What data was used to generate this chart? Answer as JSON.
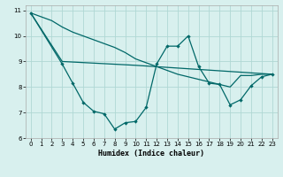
{
  "xlabel": "Humidex (Indice chaleur)",
  "bg_color": "#d8f0ee",
  "grid_color": "#b0d8d4",
  "line_color": "#006868",
  "xlim": [
    -0.5,
    23.5
  ],
  "ylim": [
    6,
    11.2
  ],
  "xticks": [
    0,
    1,
    2,
    3,
    4,
    5,
    6,
    7,
    8,
    9,
    10,
    11,
    12,
    13,
    14,
    15,
    16,
    17,
    18,
    19,
    20,
    21,
    22,
    23
  ],
  "yticks": [
    6,
    7,
    8,
    9,
    10,
    11
  ],
  "series1": [
    [
      0,
      10.9
    ],
    [
      1,
      10.75
    ],
    [
      2,
      10.6
    ],
    [
      3,
      10.35
    ],
    [
      4,
      10.15
    ],
    [
      5,
      10.0
    ],
    [
      6,
      9.85
    ],
    [
      7,
      9.7
    ],
    [
      8,
      9.55
    ],
    [
      9,
      9.35
    ],
    [
      10,
      9.1
    ],
    [
      11,
      8.95
    ],
    [
      12,
      8.8
    ],
    [
      13,
      8.65
    ],
    [
      14,
      8.5
    ],
    [
      15,
      8.4
    ],
    [
      16,
      8.3
    ],
    [
      17,
      8.2
    ],
    [
      18,
      8.1
    ],
    [
      19,
      8.0
    ],
    [
      20,
      8.45
    ],
    [
      21,
      8.45
    ],
    [
      22,
      8.5
    ],
    [
      23,
      8.5
    ]
  ],
  "series2": [
    [
      0,
      10.9
    ],
    [
      3,
      9.0
    ],
    [
      10,
      8.85
    ],
    [
      23,
      8.5
    ]
  ],
  "series3": [
    [
      0,
      10.9
    ],
    [
      3,
      8.9
    ],
    [
      4,
      8.15
    ],
    [
      5,
      7.4
    ],
    [
      6,
      7.05
    ],
    [
      7,
      6.95
    ],
    [
      8,
      6.35
    ],
    [
      9,
      6.6
    ],
    [
      10,
      6.65
    ],
    [
      11,
      7.2
    ],
    [
      12,
      8.9
    ],
    [
      13,
      9.6
    ],
    [
      14,
      9.6
    ],
    [
      15,
      10.0
    ],
    [
      16,
      8.8
    ],
    [
      17,
      8.15
    ],
    [
      18,
      8.1
    ],
    [
      19,
      7.3
    ],
    [
      20,
      7.5
    ],
    [
      21,
      8.05
    ],
    [
      22,
      8.4
    ],
    [
      23,
      8.5
    ]
  ]
}
